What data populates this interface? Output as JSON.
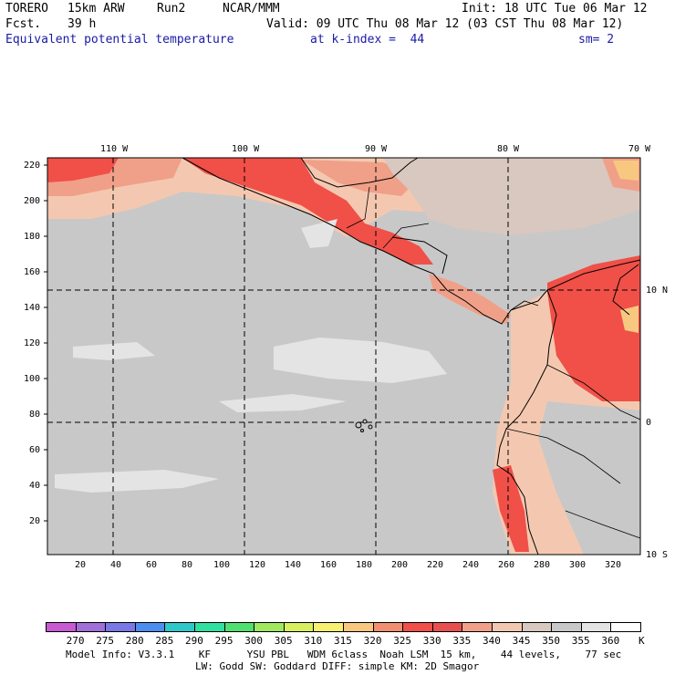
{
  "header": {
    "model": "TORERO",
    "resolution": "15km ARW",
    "run": "Run2",
    "org": "NCAR/MMM",
    "init": "Init: 18 UTC Tue 06 Mar 12",
    "fcst_label": "Fcst.",
    "fcst_value": "39 h",
    "valid": "Valid: 09 UTC Thu 08 Mar 12 (03 CST Thu 08 Mar 12)",
    "field": "Equivalent potential temperature",
    "level": "at k-index =  44",
    "smoothing": "sm= 2"
  },
  "map": {
    "lon_labels": [
      "110 W",
      "100 W",
      "90 W",
      "80 W",
      "70 W"
    ],
    "lat_labels": [
      "10 N",
      "0",
      "10 S"
    ],
    "y_ticks": [
      "220",
      "200",
      "180",
      "160",
      "140",
      "120",
      "100",
      "80",
      "60",
      "40",
      "20"
    ],
    "x_ticks": [
      "20",
      "40",
      "60",
      "80",
      "100",
      "120",
      "140",
      "160",
      "180",
      "200",
      "220",
      "240",
      "260",
      "280",
      "300",
      "320"
    ]
  },
  "colorbar": {
    "labels": [
      "270",
      "275",
      "280",
      "285",
      "290",
      "295",
      "300",
      "305",
      "310",
      "315",
      "320",
      "325",
      "330",
      "335",
      "340",
      "345",
      "350",
      "355",
      "360"
    ],
    "unit": "K",
    "colors": [
      "#c85ad2",
      "#a070d8",
      "#7a78e6",
      "#4c8ef0",
      "#2fc8c8",
      "#30e0a0",
      "#50e070",
      "#a0e860",
      "#d8f060",
      "#f8f070",
      "#f8c880",
      "#f09070",
      "#f05048",
      "#e85050",
      "#f0a088",
      "#f4c8b0",
      "#d8c8c0",
      "#c8c8c8",
      "#e4e4e4",
      "#ffffff"
    ]
  },
  "footer": {
    "line1": "Model Info: V3.3.1    KF      YSU PBL   WDM 6class  Noah LSM  15 km,    44 levels,    77 sec",
    "line2": "LW: Godd SW: Goddard DIFF: simple KM: 2D Smagor"
  }
}
